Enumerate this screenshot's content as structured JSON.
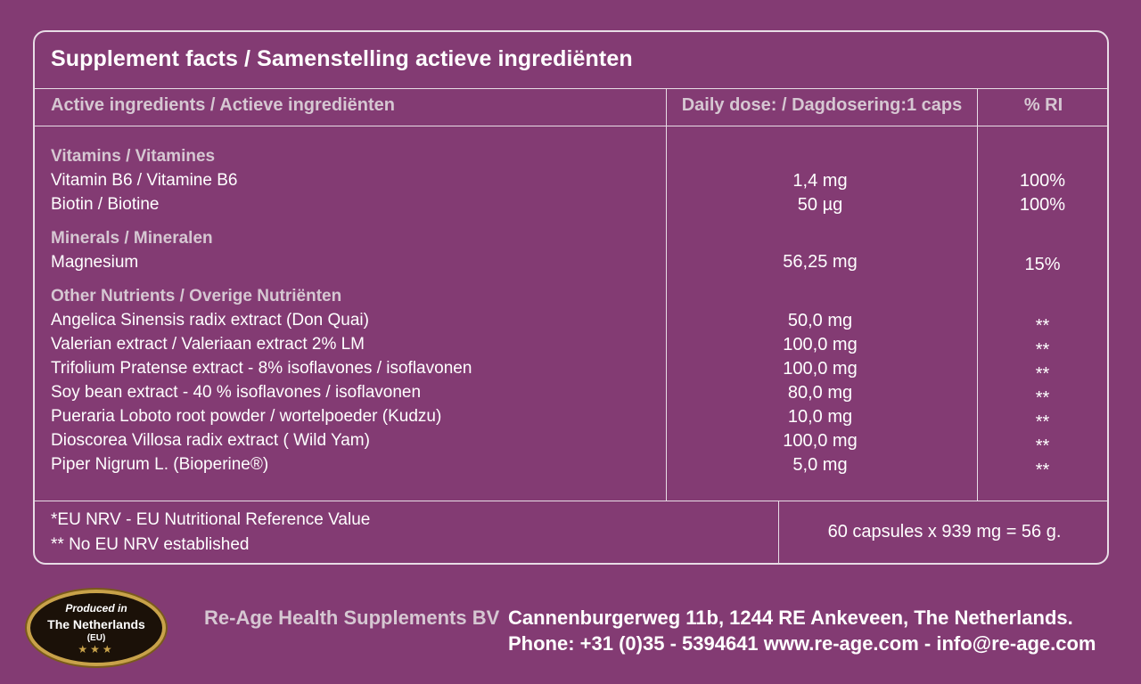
{
  "title": "Supplement facts  / Samenstelling actieve ingrediënten",
  "columns": {
    "ingredients": "Active ingredients / Actieve ingrediënten",
    "dose": "Daily dose: / Dagdosering:1 caps",
    "ri": "% RI"
  },
  "groups": {
    "vitamins": "Vitamins / Vitamines",
    "minerals": "Minerals / Mineralen",
    "other": "Other Nutrients / Overige Nutriënten"
  },
  "rows": [
    {
      "name": "Vitamin B6 / Vitamine B6",
      "dose": "1,4 mg",
      "ri": "100%"
    },
    {
      "name": "Biotin / Biotine",
      "dose": "50 µg",
      "ri": "100%"
    },
    {
      "name": "Magnesium",
      "dose": "56,25 mg",
      "ri": "15%"
    },
    {
      "name": "Angelica Sinensis radix extract (Don Quai)",
      "dose": "50,0 mg",
      "ri": "**"
    },
    {
      "name": "Valerian extract / Valeriaan extract 2% LM",
      "dose": "100,0 mg",
      "ri": "**"
    },
    {
      "name": "Trifolium Pratense extract - 8% isoflavones / isoflavonen",
      "dose": "100,0 mg",
      "ri": "**"
    },
    {
      "name": "Soy bean extract - 40 % isoflavones / isoflavonen",
      "dose": "80,0 mg",
      "ri": "**"
    },
    {
      "name": "Pueraria Loboto root powder / wortelpoeder (Kudzu)",
      "dose": "10,0 mg",
      "ri": "**"
    },
    {
      "name": "Dioscorea Villosa radix extract ( Wild Yam)",
      "dose": "100,0 mg",
      "ri": "**"
    },
    {
      "name": "Piper Nigrum L. (Bioperine®)",
      "dose": "5,0 mg",
      "ri": "**"
    }
  ],
  "footnotes": {
    "nrv": "*EU NRV - EU Nutritional Reference Value",
    "none": "** No EU NRV established",
    "capsules": "60 capsules x 939 mg = 56 g."
  },
  "badge": {
    "line1": "Produced in",
    "line2": "The Netherlands",
    "line3": "(EU)",
    "stars": "★★★"
  },
  "company": {
    "name": "Re-Age Health Supplements BV",
    "address": "Cannenburgerweg 11b,  1244 RE  Ankeveen, The Netherlands.",
    "contact": "Phone: +31 (0)35 - 5394641   www.re-age.com  -  info@re-age.com"
  },
  "colors": {
    "background": "#833b73",
    "border": "#e8dde6",
    "muted_text": "#d6c7d2",
    "badge_gold": "#c8a24a"
  }
}
